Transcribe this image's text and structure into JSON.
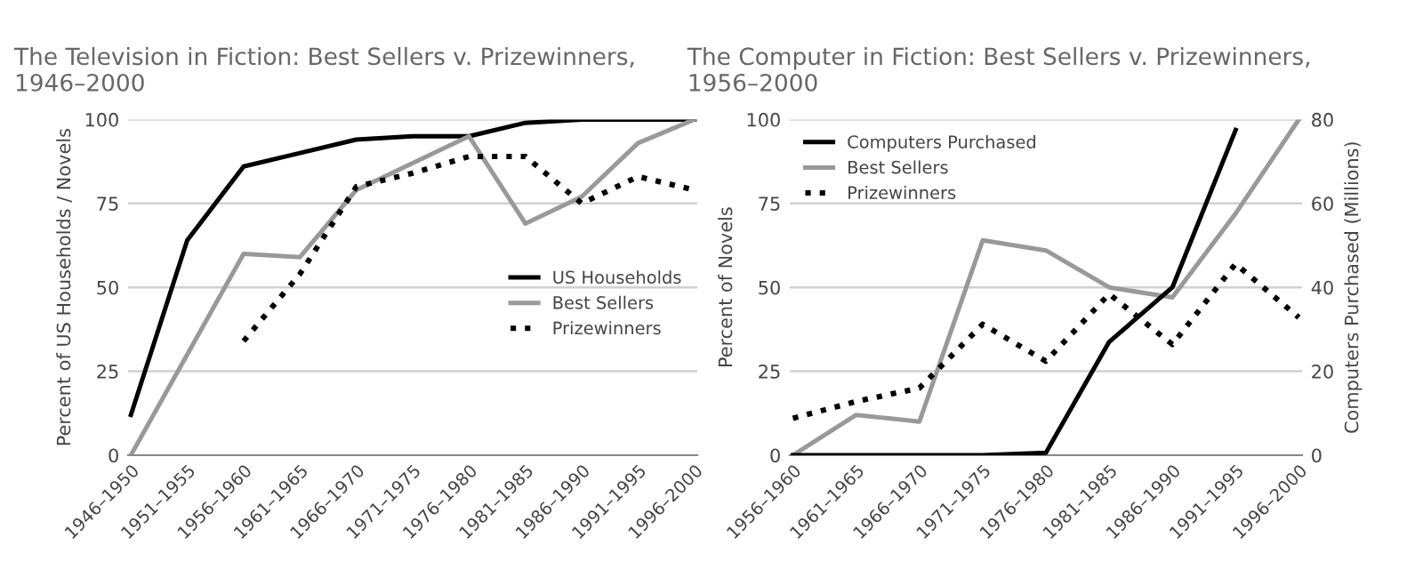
{
  "chart_data": [
    {
      "type": "line",
      "title": "The Television in Fiction: Best Sellers v. Prizewinners,\n1946–2000",
      "ylabel": "Percent of US Households / Novels",
      "categories": [
        "1946–1950",
        "1951–1955",
        "1956–1960",
        "1961–1965",
        "1966–1970",
        "1971–1975",
        "1976–1980",
        "1981–1985",
        "1986–1990",
        "1991–1995",
        "1996–2000"
      ],
      "series": [
        {
          "name": "US Households",
          "color": "#000000",
          "line_style": "solid",
          "values": [
            12,
            64,
            86,
            90,
            94,
            95,
            95,
            99,
            100,
            100,
            100
          ]
        },
        {
          "name": "Best Sellers",
          "color": "#999999",
          "line_style": "solid",
          "values": [
            0,
            30,
            60,
            59,
            79,
            87,
            95,
            69,
            77,
            93,
            100
          ]
        },
        {
          "name": "Prizewinners",
          "color": "#000000",
          "line_style": "dotted",
          "values": [
            null,
            null,
            34,
            54,
            80,
            84,
            89,
            89,
            75,
            83,
            79
          ]
        }
      ],
      "ylim": [
        0,
        100
      ],
      "yticks": [
        0,
        25,
        50,
        75,
        100
      ],
      "grid": "y",
      "legend": "center right"
    },
    {
      "type": "line",
      "title": "The Computer in Fiction: Best Sellers v. Prizewinners,\n1956–2000",
      "ylabel": "Percent of Novels",
      "y2label": "Computers Purchased (Millions)",
      "categories": [
        "1956–1960",
        "1961–1965",
        "1966–1970",
        "1971–1975",
        "1976–1980",
        "1981–1985",
        "1986–1990",
        "1991–1995",
        "1996–2000"
      ],
      "series": [
        {
          "name": "Computers Purchased",
          "color": "#000000",
          "line_style": "solid",
          "axis": "y2",
          "values": [
            0,
            0,
            0,
            0,
            0.6,
            27,
            40,
            77.5,
            null
          ]
        },
        {
          "name": "Best Sellers",
          "color": "#999999",
          "line_style": "solid",
          "values": [
            0,
            12,
            10,
            64,
            61,
            50,
            47,
            72,
            100
          ]
        },
        {
          "name": "Prizewinners",
          "color": "#000000",
          "line_style": "dotted",
          "values": [
            11,
            16,
            20,
            39,
            28,
            48,
            33,
            57,
            41
          ]
        }
      ],
      "ylim": [
        0,
        100
      ],
      "yticks": [
        0,
        25,
        50,
        75,
        100
      ],
      "y2lim": [
        0,
        80
      ],
      "y2ticks": [
        0,
        20,
        40,
        60,
        80
      ],
      "grid": "y",
      "legend": "upper left"
    }
  ]
}
